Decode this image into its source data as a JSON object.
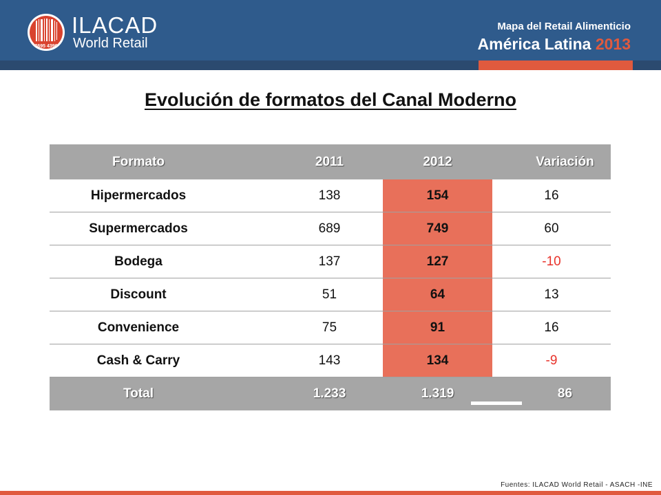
{
  "brand": {
    "name": "ILACAD",
    "subtitle": "World Retail",
    "logo_text": "3695  4396"
  },
  "report": {
    "line1": "Mapa del Retail Alimenticio",
    "line2_main": "América Latina ",
    "line2_year": "2013"
  },
  "title": "Evolución de formatos del Canal Moderno",
  "table": {
    "headers": [
      "Formato",
      "2011",
      "2012",
      "Variación"
    ],
    "rows": [
      {
        "formato": "Hipermercados",
        "y2011": "138",
        "y2012": "154",
        "variacion": "16"
      },
      {
        "formato": "Supermercados",
        "y2011": "689",
        "y2012": "749",
        "variacion": "60"
      },
      {
        "formato": "Bodega",
        "y2011": "137",
        "y2012": "127",
        "variacion": "-10"
      },
      {
        "formato": "Discount",
        "y2011": "51",
        "y2012": "64",
        "variacion": "13"
      },
      {
        "formato": "Convenience",
        "y2011": "75",
        "y2012": "91",
        "variacion": "16"
      },
      {
        "formato": "Cash & Carry",
        "y2011": "143",
        "y2012": "134",
        "variacion": "-9"
      }
    ],
    "total": {
      "formato": "Total",
      "y2011": "1.233",
      "y2012": "1.319",
      "variacion": "86"
    }
  },
  "source": "Fuentes: ILACAD World Retail - ASACH -INE",
  "colors": {
    "header_blue": "#2f5b8c",
    "accent_red": "#e05a3e",
    "highlight": "#e8705a",
    "negative": "#e8322a",
    "table_header_gray": "#a6a6a6"
  },
  "icons": {
    "logo": "barcode-circle-logo"
  }
}
